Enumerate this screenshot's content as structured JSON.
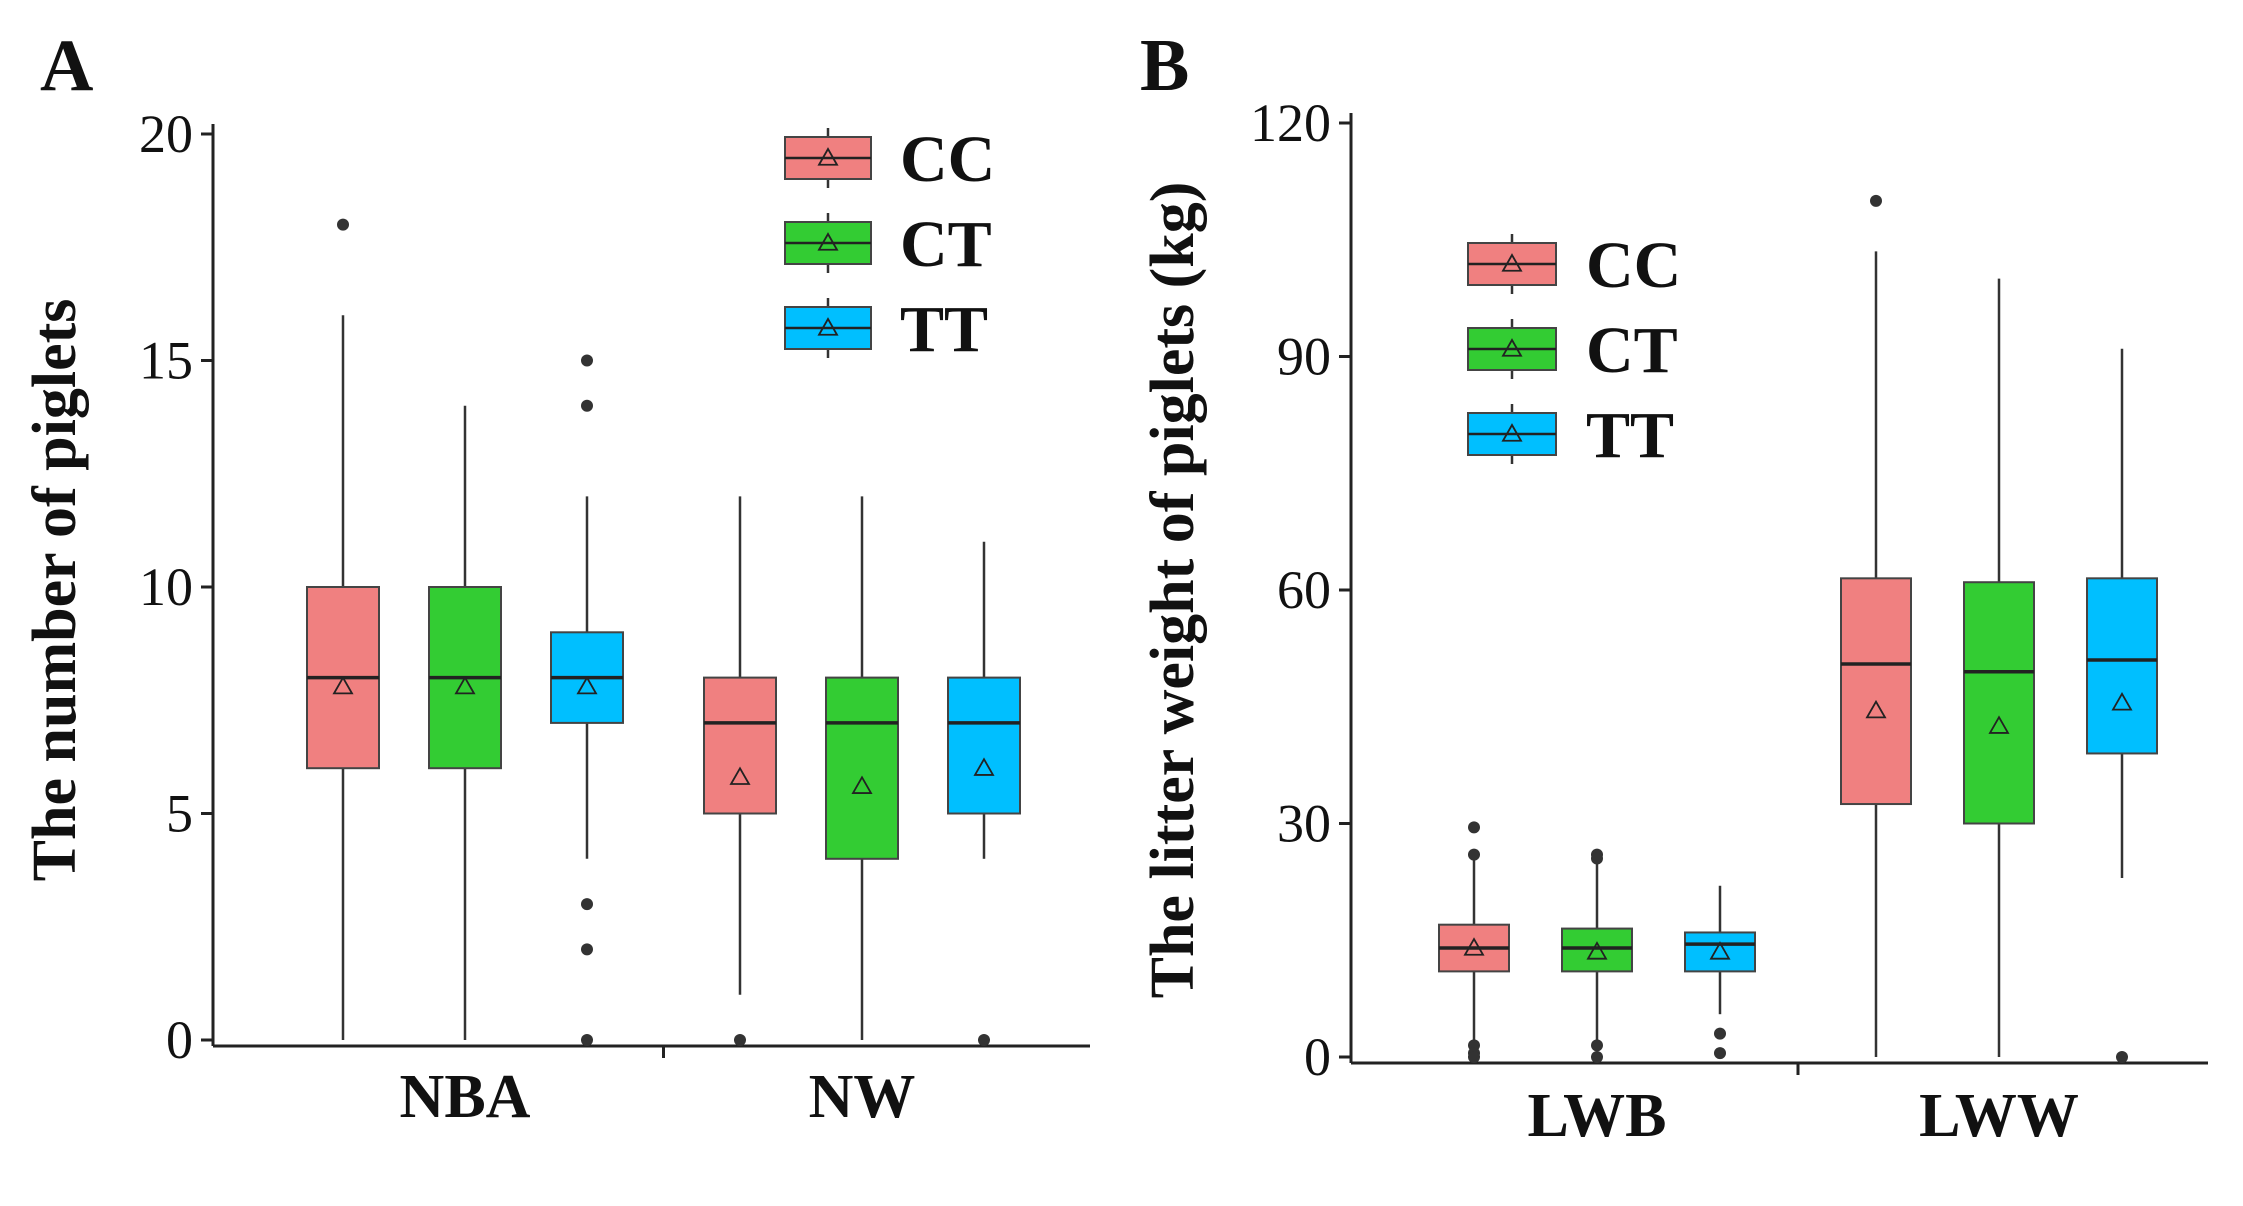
{
  "chart_data": [
    {
      "type": "box",
      "panel_label": "A",
      "title": "",
      "xlabel": "",
      "ylabel": "The number of piglets",
      "ylim": [
        0,
        20
      ],
      "yticks": [
        0,
        5,
        10,
        15,
        20
      ],
      "grid": false,
      "legend_position": "top-right",
      "categories": [
        "NBA",
        "NW"
      ],
      "series": [
        {
          "name": "CC",
          "color": "#F08080",
          "values": [
            {
              "category": "NBA",
              "min": 0,
              "q1": 6,
              "median": 8,
              "q3": 10,
              "max": 16,
              "mean": 7.8,
              "outliers": [
                18
              ]
            },
            {
              "category": "NW",
              "min": 1,
              "q1": 5,
              "median": 7,
              "q3": 8,
              "max": 12,
              "mean": 5.8,
              "outliers": [
                0
              ]
            }
          ]
        },
        {
          "name": "CT",
          "color": "#33CC33",
          "values": [
            {
              "category": "NBA",
              "min": 0,
              "q1": 6,
              "median": 8,
              "q3": 10,
              "max": 14,
              "mean": 7.8,
              "outliers": []
            },
            {
              "category": "NW",
              "min": 0,
              "q1": 4,
              "median": 7,
              "q3": 8,
              "max": 12,
              "mean": 5.6,
              "outliers": []
            }
          ]
        },
        {
          "name": "TT",
          "color": "#00BFFF",
          "values": [
            {
              "category": "NBA",
              "min": 4,
              "q1": 7,
              "median": 8,
              "q3": 9,
              "max": 12,
              "mean": 7.8,
              "outliers": [
                15,
                14,
                3,
                2,
                0
              ]
            },
            {
              "category": "NW",
              "min": 4,
              "q1": 5,
              "median": 7,
              "q3": 8,
              "max": 11,
              "mean": 6.0,
              "outliers": [
                0
              ]
            }
          ]
        }
      ]
    },
    {
      "type": "box",
      "panel_label": "B",
      "title": "",
      "xlabel": "",
      "ylabel": "The litter weight of piglets (kg)",
      "ylim": [
        0,
        120
      ],
      "yticks": [
        0,
        30,
        60,
        90,
        120
      ],
      "grid": false,
      "legend_position": "top-left",
      "categories": [
        "LWB",
        "LWW"
      ],
      "series": [
        {
          "name": "CC",
          "color": "#F08080",
          "values": [
            {
              "category": "LWB",
              "min": 2,
              "q1": 11,
              "median": 14,
              "q3": 17,
              "max": 26,
              "mean": 14,
              "outliers": [
                29.5,
                26,
                1.5,
                0.5,
                0
              ]
            },
            {
              "category": "LWW",
              "min": 0,
              "q1": 32.5,
              "median": 50.5,
              "q3": 61.5,
              "max": 103.5,
              "mean": 44.5,
              "outliers": [
                110
              ]
            }
          ]
        },
        {
          "name": "CT",
          "color": "#33CC33",
          "values": [
            {
              "category": "LWB",
              "min": 2,
              "q1": 11,
              "median": 14,
              "q3": 16.5,
              "max": 25,
              "mean": 13.5,
              "outliers": [
                26,
                25.5,
                1.5,
                0
              ]
            },
            {
              "category": "LWW",
              "min": 0,
              "q1": 30,
              "median": 49.5,
              "q3": 61,
              "max": 100,
              "mean": 42.5,
              "outliers": []
            }
          ]
        },
        {
          "name": "TT",
          "color": "#00BFFF",
          "values": [
            {
              "category": "LWB",
              "min": 5.5,
              "q1": 11,
              "median": 14.5,
              "q3": 16,
              "max": 22,
              "mean": 13.5,
              "outliers": [
                3,
                0.5
              ]
            },
            {
              "category": "LWW",
              "min": 23,
              "q1": 39,
              "median": 51,
              "q3": 61.5,
              "max": 91,
              "mean": 45.5,
              "outliers": [
                0
              ]
            }
          ]
        }
      ]
    }
  ]
}
